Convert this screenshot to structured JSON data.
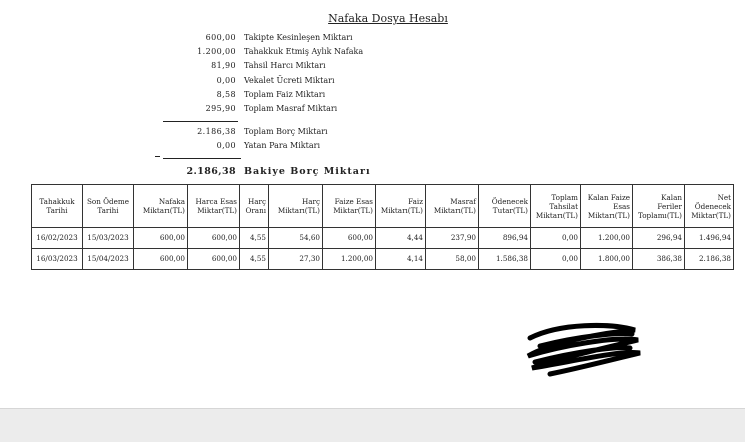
{
  "header": {
    "title": "Nafaka Dosya Hesabı"
  },
  "summary": [
    {
      "amount": "600,00",
      "label": "Takipte Kesinleşen Miktarı"
    },
    {
      "amount": "1.200,00",
      "label": "Tahakkuk Etmiş Aylık Nafaka"
    },
    {
      "amount": "81,90",
      "label": "Tahsil Harcı Miktarı"
    },
    {
      "amount": "0,00",
      "label": "Vekalet Ücreti Miktarı"
    },
    {
      "amount": "8,58",
      "label": "Toplam Faiz Miktarı"
    },
    {
      "amount": "295,90",
      "label": "Toplam Masraf Miktarı"
    }
  ],
  "debt": [
    {
      "amount": "2.186,38",
      "label": "Toplam Borç Miktarı"
    },
    {
      "amount": "0,00",
      "label": "Yatan Para Miktarı"
    }
  ],
  "balance": {
    "amount": "2.186,38",
    "label": "Bakiye Borç Miktarı"
  },
  "table": {
    "columns": [
      "Tahakkuk Tarihi",
      "Son Ödeme Tarihi",
      "Nafaka Miktarı(TL)",
      "Harca Esas Miktar(TL)",
      "Harç Oranı",
      "Harç Miktarı(TL)",
      "Faize Esas Miktar(TL)",
      "Faiz Miktarı(TL)",
      "Masraf Miktarı(TL)",
      "Ödenecek Tutar(TL)",
      "Toplam Tahsilat Miktarı(TL)",
      "Kalan Faize Esas Miktarı(TL)",
      "Kalan Feriler Toplamı(TL)",
      "Net Ödenecek Miktar(TL)"
    ],
    "rows": [
      [
        "16/02/2023",
        "15/03/2023",
        "600,00",
        "600,00",
        "4,55",
        "54,60",
        "600,00",
        "4,44",
        "237,90",
        "896,94",
        "0,00",
        "1.200,00",
        "296,94",
        "1.496,94"
      ],
      [
        "16/03/2023",
        "15/04/2023",
        "600,00",
        "600,00",
        "4,55",
        "27,30",
        "1.200,00",
        "4,14",
        "58,00",
        "1.586,38",
        "0,00",
        "1.800,00",
        "386,38",
        "2.186,38"
      ]
    ]
  }
}
